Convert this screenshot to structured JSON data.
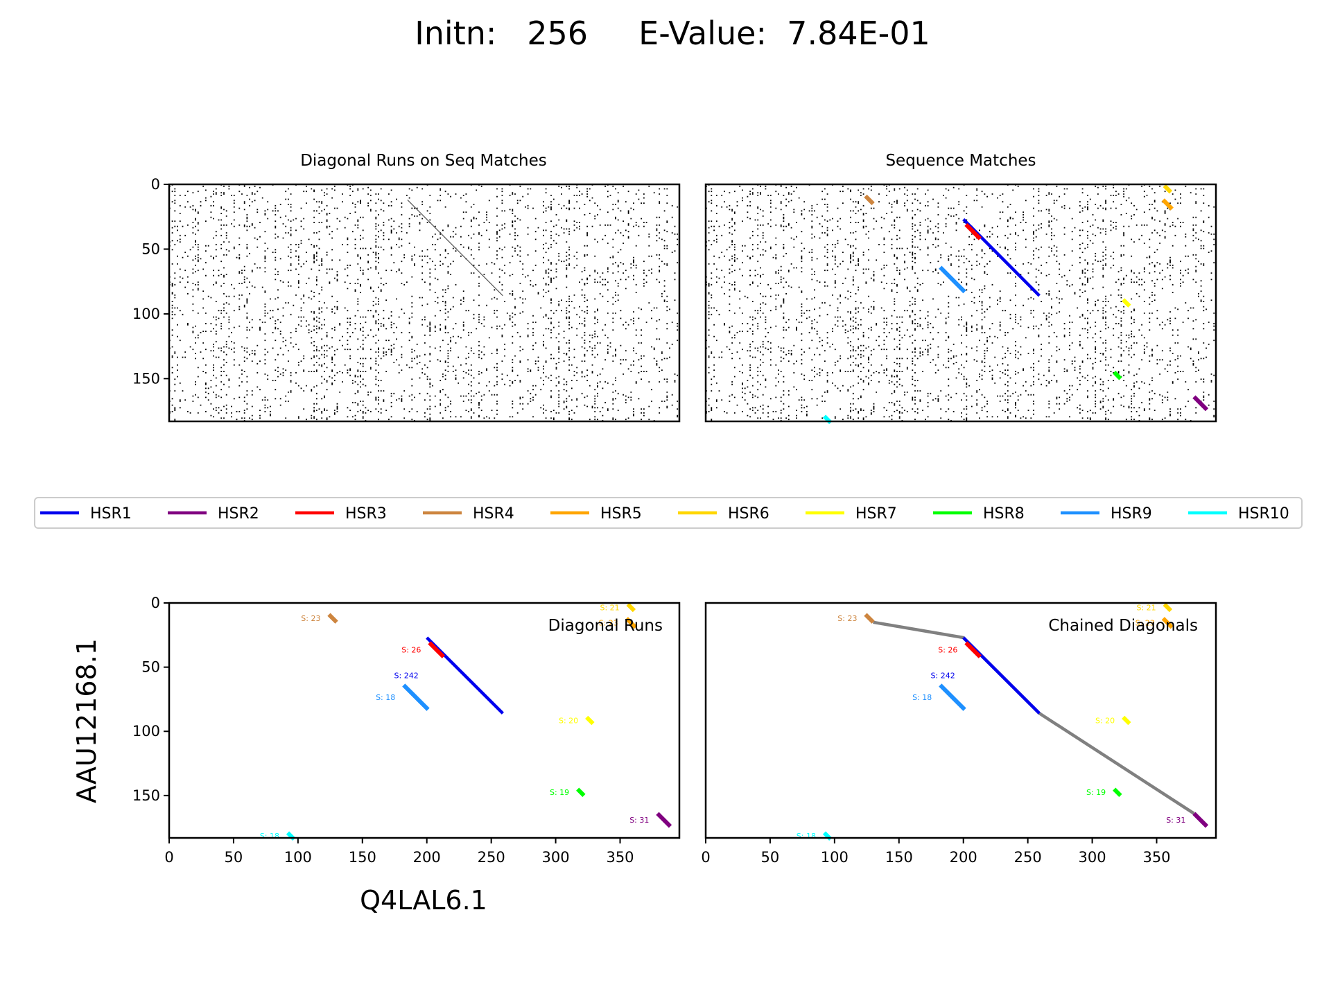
{
  "figure": {
    "title": "Initn:   256     E-Value:  7.84E-01",
    "initn": 256,
    "e_value": "7.84E-01",
    "xlabel": "Q4LAL6.1",
    "ylabel": "AAU12168.1"
  },
  "colors": {
    "HSR1": "#0000ee",
    "HSR2": "#800080",
    "HSR3": "#ff0000",
    "HSR4": "#cd853f",
    "HSR5": "#ffa500",
    "HSR6": "#ffd700",
    "HSR7": "#ffff00",
    "HSR8": "#00ff00",
    "HSR9": "#1e90ff",
    "HSR10": "#00ffff",
    "chain": "#808080",
    "dots": "#000000"
  },
  "legend": {
    "placement": "center, between rows",
    "entries": [
      "HSR1",
      "HSR2",
      "HSR3",
      "HSR4",
      "HSR5",
      "HSR6",
      "HSR7",
      "HSR8",
      "HSR9",
      "HSR10"
    ]
  },
  "chart_data": [
    {
      "type": "scatter",
      "title": "Diagonal Runs on Seq Matches",
      "xlim": [
        0,
        396
      ],
      "ylim": [
        183,
        0
      ],
      "yticks": [
        0,
        50,
        100,
        150
      ],
      "content": "dot-plot of sequence matches with faint diagonal runs"
    },
    {
      "type": "scatter",
      "title": "Sequence Matches",
      "xlim": [
        0,
        396
      ],
      "ylim": [
        183,
        0
      ],
      "content": "dot-plot of sequence matches with colored HSR segments overlaid"
    },
    {
      "type": "line",
      "annotation": "Diagonal Runs",
      "xlim": [
        0,
        396
      ],
      "ylim": [
        183,
        0
      ],
      "xticks": [
        0,
        50,
        100,
        150,
        200,
        250,
        300,
        350
      ],
      "yticks": [
        0,
        50,
        100,
        150
      ],
      "series": [
        {
          "name": "HSR1",
          "x": [
            200,
            259
          ],
          "y": [
            27,
            86
          ],
          "label": "S: 242"
        },
        {
          "name": "HSR2",
          "x": [
            379,
            389
          ],
          "y": [
            164,
            174
          ],
          "label": "S: 31"
        },
        {
          "name": "HSR3",
          "x": [
            202,
            213
          ],
          "y": [
            31,
            42
          ],
          "label": "S: 26"
        },
        {
          "name": "HSR4",
          "x": [
            124,
            130
          ],
          "y": [
            9,
            15
          ],
          "label": "S: 23"
        },
        {
          "name": "HSR5",
          "x": [
            355,
            362
          ],
          "y": [
            12,
            19
          ],
          "label": "S: 23"
        },
        {
          "name": "HSR6",
          "x": [
            356,
            361
          ],
          "y": [
            1,
            6
          ],
          "label": "S: 21"
        },
        {
          "name": "HSR7",
          "x": [
            324,
            329
          ],
          "y": [
            89,
            94
          ],
          "label": "S: 20"
        },
        {
          "name": "HSR8",
          "x": [
            317,
            322
          ],
          "y": [
            145,
            150
          ],
          "label": "S: 19"
        },
        {
          "name": "HSR9",
          "x": [
            182,
            201
          ],
          "y": [
            64,
            83
          ],
          "label": "S: 18"
        },
        {
          "name": "HSR10",
          "x": [
            92,
            97
          ],
          "y": [
            179,
            184
          ],
          "label": "S: 18"
        }
      ]
    },
    {
      "type": "line",
      "annotation": "Chained Diagonals",
      "xlim": [
        0,
        396
      ],
      "ylim": [
        183,
        0
      ],
      "xticks": [
        0,
        50,
        100,
        150,
        200,
        250,
        300,
        350
      ],
      "chain": {
        "x": [
          130,
          200,
          259,
          379
        ],
        "y": [
          15,
          27,
          86,
          164
        ]
      },
      "series_ref": "same HSR segments as Diagonal Runs panel"
    }
  ]
}
